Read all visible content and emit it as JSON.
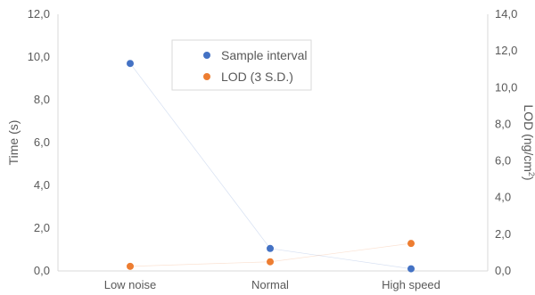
{
  "chart_data": {
    "type": "scatter",
    "categories": [
      "Low noise",
      "Normal",
      "High speed"
    ],
    "y_left": {
      "label": "Time (s)",
      "range": [
        0,
        12
      ],
      "ticks": [
        "0,0",
        "2,0",
        "4,0",
        "6,0",
        "8,0",
        "10,0",
        "12,0"
      ]
    },
    "y_right": {
      "label_main": "LOD (ng/cm",
      "label_sup": "2",
      "label_end": ")",
      "range": [
        0,
        14
      ],
      "ticks": [
        "0,0",
        "2,0",
        "4,0",
        "6,0",
        "8,0",
        "10,0",
        "12,0",
        "14,0"
      ]
    },
    "series": [
      {
        "name": "Sample interval",
        "axis": "left",
        "color": "#4472c4",
        "values": [
          9.7,
          1.05,
          0.1
        ]
      },
      {
        "name": "LOD (3 S.D.)",
        "axis": "right",
        "color": "#ed7d31",
        "values": [
          0.25,
          0.5,
          1.5
        ]
      }
    ],
    "legend_position": "top-center",
    "grid": false
  }
}
